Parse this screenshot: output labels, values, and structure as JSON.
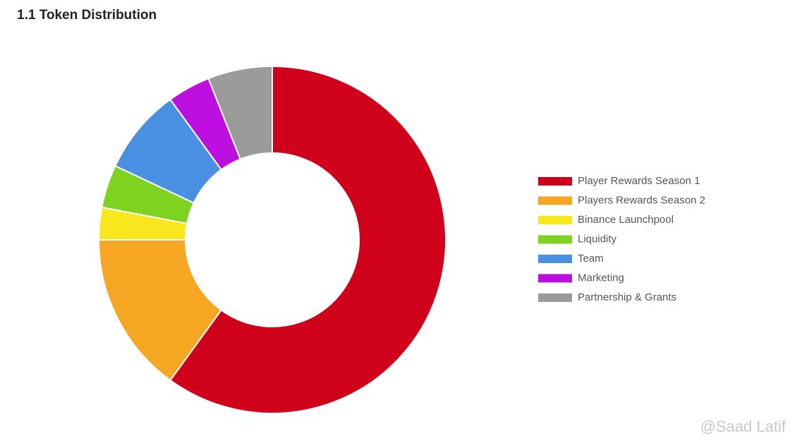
{
  "chart_data": {
    "type": "donut",
    "title": "1.1 Token Distribution",
    "categories": [
      "Player Rewards Season 1",
      "Players Rewards Season 2",
      "Binance Launchpool",
      "Liquidity",
      "Team",
      "Marketing",
      "Partnership & Grants"
    ],
    "values": [
      60,
      15,
      3,
      4,
      8,
      4,
      6
    ],
    "colors": [
      "#d0021b",
      "#f5a623",
      "#f8e71c",
      "#7ed321",
      "#4a90e2",
      "#bd10e0",
      "#9b9b9b"
    ],
    "legend": "right"
  },
  "watermark": "@Saad Latif"
}
